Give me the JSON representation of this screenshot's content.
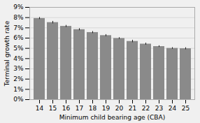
{
  "chart_data": {
    "type": "bar",
    "xlabel": "Minimum child bearing age (CBA)",
    "ylabel": "Terminal growth rate",
    "categories": [
      "14",
      "15",
      "16",
      "17",
      "18",
      "19",
      "20",
      "21",
      "22",
      "23",
      "24",
      "25"
    ],
    "values": [
      7.92,
      7.52,
      7.15,
      6.83,
      6.55,
      6.25,
      5.97,
      5.68,
      5.42,
      5.18,
      5.0,
      4.97
    ],
    "errors": [
      0.1,
      0.12,
      0.1,
      0.1,
      0.1,
      0.1,
      0.08,
      0.12,
      0.1,
      0.08,
      0.08,
      0.1
    ],
    "color": "#8a8a8a",
    "ylim": [
      0,
      9
    ],
    "yticks": [
      {
        "value": 0,
        "label": "0%"
      },
      {
        "value": 1,
        "label": "1%"
      },
      {
        "value": 2,
        "label": "2%"
      },
      {
        "value": 3,
        "label": "3%"
      },
      {
        "value": 4,
        "label": "4%"
      },
      {
        "value": 5,
        "label": "5%"
      },
      {
        "value": 6,
        "label": "6%"
      },
      {
        "value": 7,
        "label": "7%"
      },
      {
        "value": 8,
        "label": "8%"
      },
      {
        "value": 9,
        "label": "9%"
      }
    ],
    "grid": true
  }
}
